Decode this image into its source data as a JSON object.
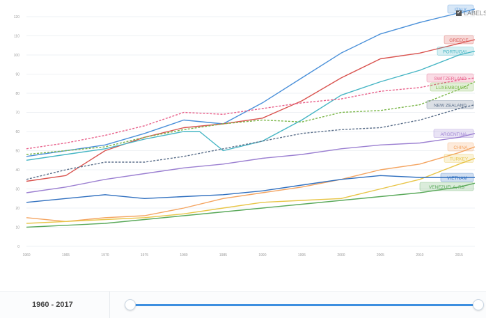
{
  "legend_toggle": {
    "label": "LABELS",
    "checked": true
  },
  "timeline": {
    "range_label": "1960 - 2017",
    "start": 1960,
    "end": 2017
  },
  "chart_data": {
    "type": "line",
    "x_ticks": [
      1960,
      1965,
      1970,
      1975,
      1980,
      1985,
      1990,
      1995,
      2000,
      2005,
      2010,
      2015
    ],
    "y_ticks": [
      0,
      10,
      20,
      30,
      40,
      50,
      60,
      70,
      80,
      90,
      100,
      110,
      120
    ],
    "ylim": [
      0,
      120
    ],
    "xlim": [
      1960,
      2017
    ],
    "grid": true,
    "series": [
      {
        "name": "ITALY",
        "color": "#4a90d9",
        "dash": false,
        "x": [
          1960,
          1970,
          1975,
          1980,
          1985,
          1990,
          1995,
          2000,
          2005,
          2010,
          2015,
          2017
        ],
        "y": [
          47,
          53,
          59,
          66,
          64,
          75,
          88,
          101,
          111,
          117,
          122,
          124
        ]
      },
      {
        "name": "GREECE",
        "color": "#d9534f",
        "dash": false,
        "x": [
          1960,
          1965,
          1970,
          1975,
          1980,
          1985,
          1990,
          1995,
          2000,
          2005,
          2010,
          2015,
          2017
        ],
        "y": [
          34,
          37,
          50,
          57,
          62,
          64,
          67,
          76,
          88,
          98,
          101,
          106,
          108
        ]
      },
      {
        "name": "PORTUGAL",
        "color": "#45b5c4",
        "dash": false,
        "x": [
          1960,
          1965,
          1970,
          1975,
          1980,
          1982,
          1985,
          1990,
          1995,
          2000,
          2005,
          2010,
          2015,
          2017
        ],
        "y": [
          45,
          48,
          51,
          56,
          60,
          60,
          50,
          55,
          66,
          79,
          86,
          92,
          100,
          102
        ]
      },
      {
        "name": "SWITZERLAND",
        "color": "#e8608a",
        "dash": true,
        "x": [
          1960,
          1965,
          1970,
          1975,
          1980,
          1985,
          1990,
          1995,
          2000,
          2005,
          2010,
          2015,
          2017
        ],
        "y": [
          51,
          54,
          58,
          63,
          70,
          69,
          72,
          75,
          77,
          81,
          83,
          87,
          88
        ]
      },
      {
        "name": "LUXEMBOURG",
        "color": "#7ab648",
        "dash": true,
        "x": [
          1960,
          1965,
          1970,
          1975,
          1980,
          1985,
          1990,
          1995,
          2000,
          2005,
          2010,
          2015,
          2017
        ],
        "y": [
          48,
          50,
          52,
          57,
          61,
          64,
          66,
          65,
          70,
          71,
          74,
          82,
          86
        ]
      },
      {
        "name": "NEW ZEALAND",
        "color": "#5b6f8a",
        "dash": true,
        "x": [
          1960,
          1965,
          1970,
          1975,
          1980,
          1985,
          1990,
          1995,
          2000,
          2005,
          2010,
          2015,
          2017
        ],
        "y": [
          35,
          40,
          44,
          44,
          47,
          51,
          55,
          59,
          61,
          62,
          66,
          72,
          74
        ]
      },
      {
        "name": "ARGENTINA",
        "color": "#9b7fd1",
        "dash": false,
        "x": [
          1960,
          1965,
          1970,
          1975,
          1980,
          1985,
          1990,
          1995,
          2000,
          2005,
          2010,
          2015,
          2017
        ],
        "y": [
          28,
          31,
          35,
          38,
          41,
          43,
          46,
          48,
          51,
          53,
          54,
          57,
          59
        ]
      },
      {
        "name": "CHINA",
        "color": "#f4a460",
        "dash": false,
        "x": [
          1960,
          1965,
          1970,
          1975,
          1980,
          1985,
          1990,
          1995,
          2000,
          2005,
          2010,
          2015,
          2017
        ],
        "y": [
          15,
          13,
          15,
          16,
          20,
          25,
          28,
          31,
          35,
          40,
          43,
          49,
          52
        ]
      },
      {
        "name": "TURKEY",
        "color": "#e8c547",
        "dash": false,
        "x": [
          1960,
          1965,
          1970,
          1975,
          1980,
          1985,
          1990,
          1995,
          2000,
          2005,
          2010,
          2015,
          2017
        ],
        "y": [
          12,
          13,
          14,
          15,
          17,
          20,
          23,
          24,
          25,
          30,
          35,
          43,
          46
        ]
      },
      {
        "name": "VIETNAM",
        "color": "#2f6fbf",
        "dash": false,
        "x": [
          1960,
          1965,
          1970,
          1975,
          1980,
          1985,
          1990,
          1995,
          2000,
          2005,
          2010,
          2015,
          2017
        ],
        "y": [
          23,
          25,
          27,
          25,
          26,
          27,
          29,
          32,
          35,
          37,
          36,
          36,
          36
        ]
      },
      {
        "name": "VENEZUELA, RB",
        "color": "#5aa95a",
        "dash": false,
        "x": [
          1960,
          1965,
          1970,
          1975,
          1980,
          1985,
          1990,
          1995,
          2000,
          2005,
          2010,
          2015,
          2017
        ],
        "y": [
          10,
          11,
          12,
          14,
          16,
          18,
          20,
          22,
          24,
          26,
          28,
          31,
          33
        ]
      }
    ]
  }
}
